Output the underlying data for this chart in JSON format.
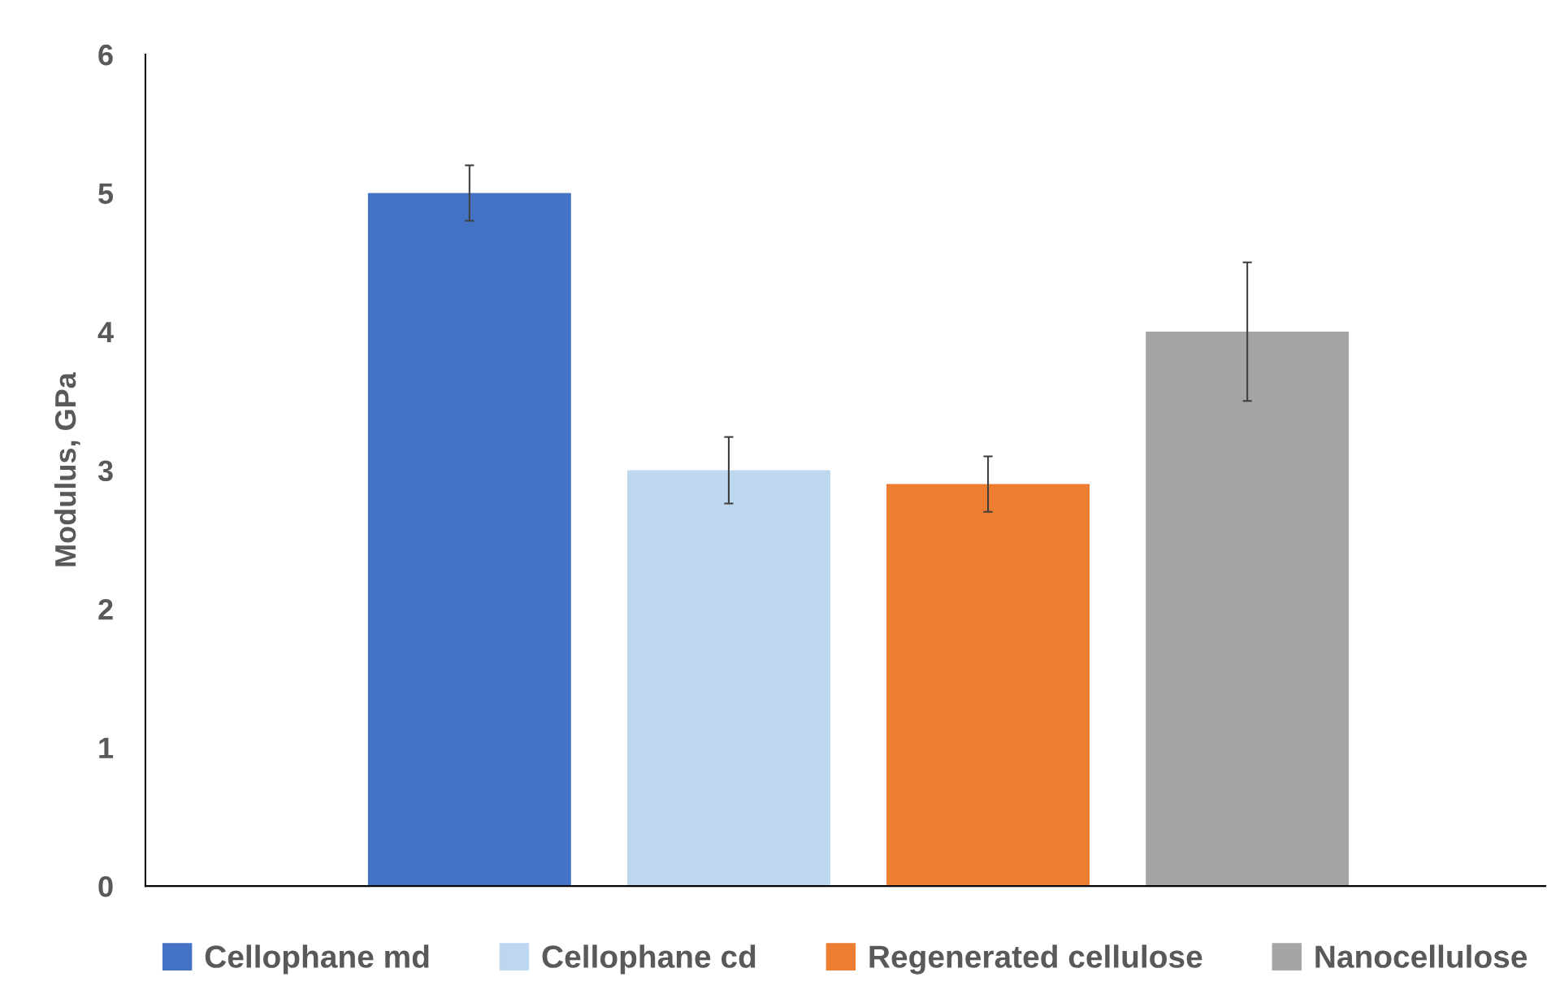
{
  "chart_data": {
    "type": "bar",
    "ylabel": "Modulus, GPa",
    "categories": [
      null
    ],
    "series": [
      {
        "name": "Cellophane md",
        "color": "#4472c4",
        "values": [
          5.0
        ],
        "errors": [
          0.2
        ]
      },
      {
        "name": "Cellophane cd",
        "color": "#bdd7ee",
        "values": [
          3.0
        ],
        "errors": [
          0.24
        ]
      },
      {
        "name": "Regenerated cellulose",
        "color": "#ed7d31",
        "values": [
          2.9
        ],
        "errors": [
          0.2
        ]
      },
      {
        "name": "Nanocellulose",
        "color": "#a5a5a5",
        "values": [
          4.0
        ],
        "errors": [
          0.5
        ]
      }
    ],
    "ylim": [
      0,
      6
    ],
    "yticks": [
      0,
      1,
      2,
      3,
      4,
      5,
      6
    ],
    "grid": false,
    "legend": "bottom",
    "tick_labels": "y"
  }
}
